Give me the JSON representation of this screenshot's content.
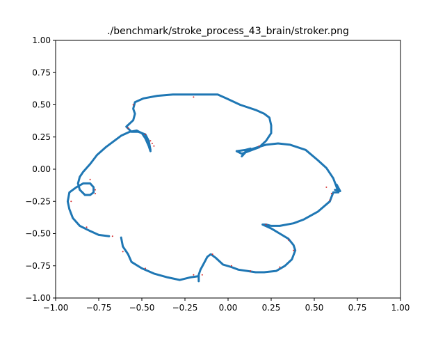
{
  "chart_data": {
    "type": "scatter",
    "title": "./benchmark/stroke_process_43_brain/stroker.png",
    "xlabel": "",
    "ylabel": "",
    "xlim": [
      -1.0,
      1.0
    ],
    "ylim": [
      -1.0,
      1.0
    ],
    "grid": false,
    "legend": "none",
    "x_ticks": [
      -1.0,
      -0.75,
      -0.5,
      -0.25,
      0.0,
      0.25,
      0.5,
      0.75,
      1.0
    ],
    "y_ticks": [
      -1.0,
      -0.75,
      -0.5,
      -0.25,
      0.0,
      0.25,
      0.5,
      0.75,
      1.0
    ],
    "x_tick_labels": [
      "−1.00",
      "−0.75",
      "−0.50",
      "−0.25",
      "0.00",
      "0.25",
      "0.50",
      "0.75",
      "1.00"
    ],
    "y_tick_labels": [
      "−1.00",
      "−0.75",
      "−0.50",
      "−0.25",
      "0.00",
      "0.25",
      "0.50",
      "0.75",
      "1.00"
    ],
    "series": [
      {
        "color": "#1f77b4",
        "strokes": [
          [
            [
              -0.45,
              0.15
            ],
            [
              -0.46,
              0.22
            ],
            [
              -0.48,
              0.27
            ],
            [
              -0.52,
              0.29
            ],
            [
              -0.56,
              0.29
            ],
            [
              -0.59,
              0.33
            ],
            [
              -0.55,
              0.38
            ],
            [
              -0.54,
              0.43
            ],
            [
              -0.55,
              0.47
            ],
            [
              -0.54,
              0.52
            ],
            [
              -0.49,
              0.55
            ],
            [
              -0.41,
              0.57
            ],
            [
              -0.32,
              0.58
            ],
            [
              -0.22,
              0.58
            ],
            [
              -0.12,
              0.58
            ],
            [
              -0.06,
              0.58
            ],
            [
              -0.01,
              0.55
            ],
            [
              0.07,
              0.5
            ],
            [
              0.16,
              0.46
            ],
            [
              0.21,
              0.43
            ],
            [
              0.24,
              0.4
            ],
            [
              0.25,
              0.34
            ],
            [
              0.25,
              0.28
            ],
            [
              0.22,
              0.22
            ],
            [
              0.18,
              0.17
            ],
            [
              0.12,
              0.14
            ],
            [
              0.08,
              0.12
            ],
            [
              0.05,
              0.14
            ]
          ],
          [
            [
              0.1,
              0.14
            ],
            [
              0.17,
              0.17
            ],
            [
              0.22,
              0.19
            ],
            [
              0.29,
              0.2
            ],
            [
              0.36,
              0.19
            ],
            [
              0.45,
              0.15
            ],
            [
              0.52,
              0.07
            ],
            [
              0.57,
              0.01
            ],
            [
              0.61,
              -0.07
            ],
            [
              0.63,
              -0.14
            ],
            [
              0.64,
              -0.18
            ],
            [
              0.61,
              -0.18
            ],
            [
              0.59,
              -0.25
            ],
            [
              0.52,
              -0.33
            ],
            [
              0.44,
              -0.39
            ],
            [
              0.38,
              -0.42
            ],
            [
              0.3,
              -0.44
            ],
            [
              0.25,
              -0.44
            ],
            [
              0.22,
              -0.43
            ],
            [
              0.2,
              -0.43
            ],
            [
              0.25,
              -0.46
            ],
            [
              0.3,
              -0.5
            ],
            [
              0.35,
              -0.54
            ],
            [
              0.38,
              -0.59
            ],
            [
              0.39,
              -0.63
            ],
            [
              0.37,
              -0.7
            ],
            [
              0.33,
              -0.75
            ],
            [
              0.28,
              -0.79
            ],
            [
              0.21,
              -0.8
            ],
            [
              0.16,
              -0.8
            ],
            [
              0.11,
              -0.79
            ],
            [
              0.06,
              -0.78
            ],
            [
              0.02,
              -0.76
            ],
            [
              -0.03,
              -0.74
            ],
            [
              -0.07,
              -0.69
            ],
            [
              -0.1,
              -0.66
            ],
            [
              -0.12,
              -0.68
            ],
            [
              -0.14,
              -0.73
            ],
            [
              -0.16,
              -0.78
            ],
            [
              -0.17,
              -0.82
            ],
            [
              -0.17,
              -0.87
            ]
          ],
          [
            [
              -0.17,
              -0.83
            ],
            [
              -0.22,
              -0.84
            ],
            [
              -0.28,
              -0.86
            ],
            [
              -0.35,
              -0.84
            ],
            [
              -0.43,
              -0.81
            ],
            [
              -0.5,
              -0.77
            ],
            [
              -0.56,
              -0.72
            ],
            [
              -0.58,
              -0.66
            ],
            [
              -0.61,
              -0.6
            ],
            [
              -0.62,
              -0.53
            ]
          ],
          [
            [
              -0.69,
              -0.52
            ],
            [
              -0.75,
              -0.51
            ],
            [
              -0.8,
              -0.48
            ],
            [
              -0.86,
              -0.44
            ],
            [
              -0.9,
              -0.38
            ],
            [
              -0.92,
              -0.31
            ],
            [
              -0.93,
              -0.25
            ],
            [
              -0.92,
              -0.18
            ],
            [
              -0.88,
              -0.14
            ],
            [
              -0.84,
              -0.11
            ],
            [
              -0.8,
              -0.11
            ],
            [
              -0.78,
              -0.14
            ],
            [
              -0.78,
              -0.18
            ],
            [
              -0.8,
              -0.2
            ],
            [
              -0.83,
              -0.2
            ],
            [
              -0.86,
              -0.16
            ],
            [
              -0.87,
              -0.11
            ],
            [
              -0.86,
              -0.06
            ],
            [
              -0.84,
              -0.02
            ],
            [
              -0.8,
              0.04
            ],
            [
              -0.76,
              0.11
            ],
            [
              -0.71,
              0.17
            ],
            [
              -0.66,
              0.22
            ],
            [
              -0.62,
              0.26
            ],
            [
              -0.57,
              0.29
            ],
            [
              -0.53,
              0.3
            ],
            [
              -0.5,
              0.28
            ],
            [
              -0.48,
              0.24
            ],
            [
              -0.46,
              0.18
            ],
            [
              -0.45,
              0.14
            ]
          ],
          [
            [
              0.05,
              0.14
            ],
            [
              0.1,
              0.15
            ],
            [
              0.13,
              0.16
            ],
            [
              0.1,
              0.13
            ],
            [
              0.08,
              0.1
            ]
          ],
          [
            [
              0.63,
              -0.12
            ],
            [
              0.65,
              -0.17
            ],
            [
              0.62,
              -0.16
            ]
          ]
        ]
      },
      {
        "color": "#d62728",
        "points": [
          [
            -0.2,
            0.56
          ],
          [
            -0.55,
            0.5
          ],
          [
            -0.45,
            0.22
          ],
          [
            -0.44,
            0.2
          ],
          [
            -0.43,
            0.18
          ],
          [
            -0.48,
            0.27
          ],
          [
            -0.58,
            0.32
          ],
          [
            -0.8,
            -0.08
          ],
          [
            -0.77,
            -0.16
          ],
          [
            -0.77,
            -0.19
          ],
          [
            -0.91,
            -0.25
          ],
          [
            -0.82,
            -0.45
          ],
          [
            -0.67,
            -0.52
          ],
          [
            -0.61,
            -0.64
          ],
          [
            -0.48,
            -0.77
          ],
          [
            -0.2,
            -0.82
          ],
          [
            -0.15,
            -0.82
          ],
          [
            -0.09,
            -0.66
          ],
          [
            0.02,
            -0.75
          ],
          [
            0.13,
            -0.79
          ],
          [
            0.22,
            -0.43
          ],
          [
            0.35,
            -0.55
          ],
          [
            0.38,
            -0.63
          ],
          [
            0.3,
            -0.76
          ],
          [
            0.18,
            0.18
          ],
          [
            0.57,
            -0.14
          ],
          [
            0.59,
            -0.24
          ],
          [
            0.6,
            -0.19
          ]
        ]
      }
    ]
  }
}
